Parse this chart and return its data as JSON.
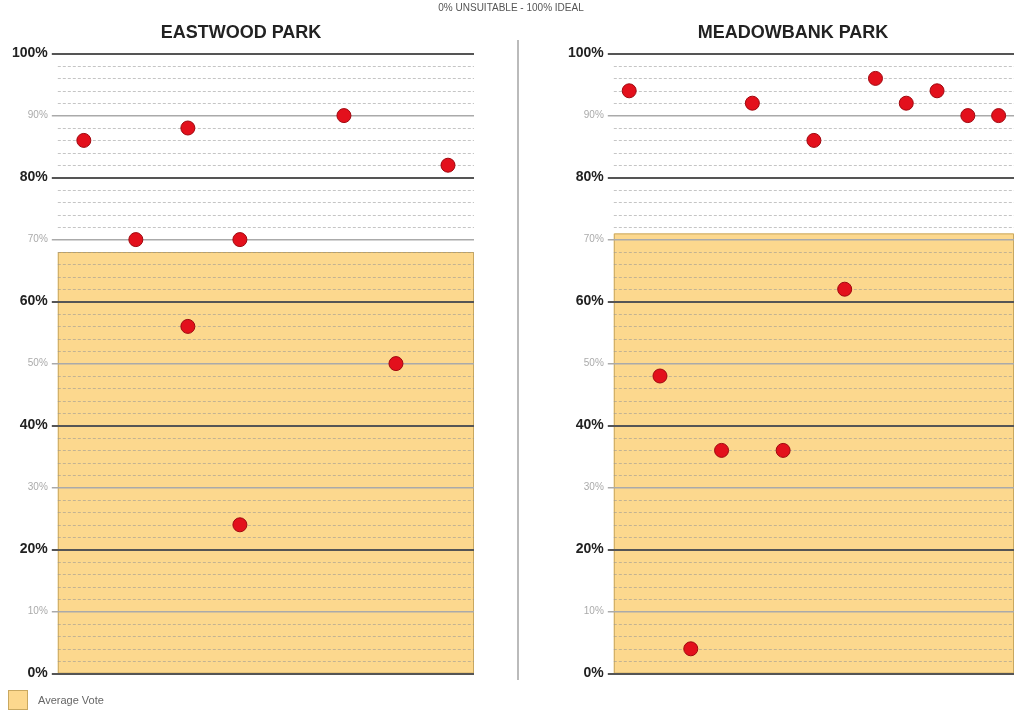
{
  "chart_data": [
    {
      "type": "scatter",
      "title": "EASTWOOD PARK",
      "annotations": [
        "0% UNSUITABLE - 100% IDEAL"
      ],
      "categories": [
        null,
        null,
        null,
        null,
        null,
        null,
        null,
        null
      ],
      "series": [
        {
          "color": "#e3101c",
          "values": [
            86,
            70,
            88,
            70,
            null,
            90,
            50,
            82
          ]
        },
        {
          "color": "#e3101c",
          "values": [
            null,
            null,
            56,
            24,
            null,
            null,
            null,
            null
          ]
        }
      ],
      "bands": [
        {
          "axis": "y",
          "from": 0,
          "to": 68,
          "label": "Average Vote",
          "color": "#fcd88e"
        }
      ],
      "ylim": [
        0,
        100
      ],
      "yticks": [
        {
          "value": 0,
          "label": "0%"
        },
        {
          "value": 2,
          "label": null
        },
        {
          "value": 4,
          "label": null
        },
        {
          "value": 6,
          "label": null
        },
        {
          "value": 8,
          "label": null
        },
        {
          "value": 10,
          "label": "10%"
        },
        {
          "value": 12,
          "label": null
        },
        {
          "value": 14,
          "label": null
        },
        {
          "value": 16,
          "label": null
        },
        {
          "value": 18,
          "label": null
        },
        {
          "value": 20,
          "label": "20%"
        },
        {
          "value": 22,
          "label": null
        },
        {
          "value": 24,
          "label": null
        },
        {
          "value": 26,
          "label": null
        },
        {
          "value": 28,
          "label": null
        },
        {
          "value": 30,
          "label": "30%"
        },
        {
          "value": 32,
          "label": null
        },
        {
          "value": 34,
          "label": null
        },
        {
          "value": 36,
          "label": null
        },
        {
          "value": 38,
          "label": null
        },
        {
          "value": 40,
          "label": "40%"
        },
        {
          "value": 42,
          "label": null
        },
        {
          "value": 44,
          "label": null
        },
        {
          "value": 46,
          "label": null
        },
        {
          "value": 48,
          "label": null
        },
        {
          "value": 50,
          "label": "50%"
        },
        {
          "value": 52,
          "label": null
        },
        {
          "value": 54,
          "label": null
        },
        {
          "value": 56,
          "label": null
        },
        {
          "value": 58,
          "label": null
        },
        {
          "value": 60,
          "label": "60%"
        },
        {
          "value": 62,
          "label": null
        },
        {
          "value": 64,
          "label": null
        },
        {
          "value": 66,
          "label": null
        },
        {
          "value": 68,
          "label": null
        },
        {
          "value": 70,
          "label": "70%"
        },
        {
          "value": 72,
          "label": null
        },
        {
          "value": 74,
          "label": null
        },
        {
          "value": 76,
          "label": null
        },
        {
          "value": 78,
          "label": null
        },
        {
          "value": 80,
          "label": "80%"
        },
        {
          "value": 82,
          "label": null
        },
        {
          "value": 84,
          "label": null
        },
        {
          "value": 86,
          "label": null
        },
        {
          "value": 88,
          "label": null
        },
        {
          "value": 90,
          "label": "90%"
        },
        {
          "value": 92,
          "label": null
        },
        {
          "value": 94,
          "label": null
        },
        {
          "value": 96,
          "label": null
        },
        {
          "value": 98,
          "label": null
        },
        {
          "value": 100,
          "label": "100%"
        }
      ],
      "grid": "y",
      "tick_labels": "y",
      "marker": "circle",
      "legend": "bottom left"
    },
    {
      "type": "scatter",
      "title": "MEADOWBANK PARK",
      "categories": [
        null,
        null,
        null,
        null,
        null,
        null,
        null,
        null,
        null,
        null,
        null,
        null,
        null
      ],
      "series": [
        {
          "color": "#e3101c",
          "values": [
            94,
            48,
            4,
            36,
            92,
            36,
            86,
            62,
            96,
            92,
            94,
            90,
            90
          ]
        }
      ],
      "bands": [
        {
          "axis": "y",
          "from": 0,
          "to": 71,
          "color": "#fcd88e"
        }
      ],
      "ylim": [
        0,
        100
      ],
      "yticks": [
        {
          "value": 0,
          "label": "0%"
        },
        {
          "value": 2,
          "label": null
        },
        {
          "value": 4,
          "label": null
        },
        {
          "value": 6,
          "label": null
        },
        {
          "value": 8,
          "label": null
        },
        {
          "value": 10,
          "label": "10%"
        },
        {
          "value": 12,
          "label": null
        },
        {
          "value": 14,
          "label": null
        },
        {
          "value": 16,
          "label": null
        },
        {
          "value": 18,
          "label": null
        },
        {
          "value": 20,
          "label": "20%"
        },
        {
          "value": 22,
          "label": null
        },
        {
          "value": 24,
          "label": null
        },
        {
          "value": 26,
          "label": null
        },
        {
          "value": 28,
          "label": null
        },
        {
          "value": 30,
          "label": "30%"
        },
        {
          "value": 32,
          "label": null
        },
        {
          "value": 34,
          "label": null
        },
        {
          "value": 36,
          "label": null
        },
        {
          "value": 38,
          "label": null
        },
        {
          "value": 40,
          "label": "40%"
        },
        {
          "value": 42,
          "label": null
        },
        {
          "value": 44,
          "label": null
        },
        {
          "value": 46,
          "label": null
        },
        {
          "value": 48,
          "label": null
        },
        {
          "value": 50,
          "label": "50%"
        },
        {
          "value": 52,
          "label": null
        },
        {
          "value": 54,
          "label": null
        },
        {
          "value": 56,
          "label": null
        },
        {
          "value": 58,
          "label": null
        },
        {
          "value": 60,
          "label": "60%"
        },
        {
          "value": 62,
          "label": null
        },
        {
          "value": 64,
          "label": null
        },
        {
          "value": 66,
          "label": null
        },
        {
          "value": 68,
          "label": null
        },
        {
          "value": 70,
          "label": "70%"
        },
        {
          "value": 72,
          "label": null
        },
        {
          "value": 74,
          "label": null
        },
        {
          "value": 76,
          "label": null
        },
        {
          "value": 78,
          "label": null
        },
        {
          "value": 80,
          "label": "80%"
        },
        {
          "value": 82,
          "label": null
        },
        {
          "value": 84,
          "label": null
        },
        {
          "value": 86,
          "label": null
        },
        {
          "value": 88,
          "label": null
        },
        {
          "value": 90,
          "label": "90%"
        },
        {
          "value": 92,
          "label": null
        },
        {
          "value": 94,
          "label": null
        },
        {
          "value": 96,
          "label": null
        },
        {
          "value": 98,
          "label": null
        },
        {
          "value": 100,
          "label": "100%"
        }
      ],
      "grid": "y",
      "tick_labels": "y",
      "marker": "circle"
    }
  ]
}
